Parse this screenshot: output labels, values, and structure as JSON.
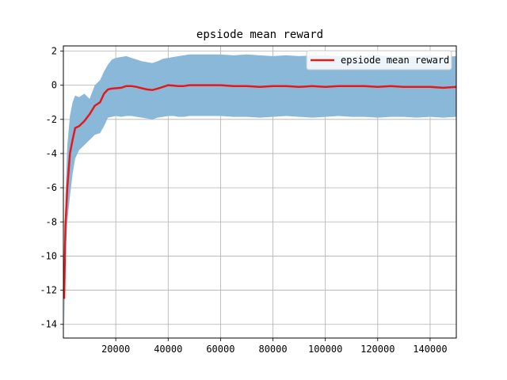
{
  "chart_data": {
    "type": "line",
    "title": "epsiode mean reward",
    "xlabel": "",
    "ylabel": "",
    "xlim": [
      0,
      150000
    ],
    "ylim": [
      -14.8,
      2.3
    ],
    "x_ticks": [
      20000,
      40000,
      60000,
      80000,
      100000,
      120000,
      140000
    ],
    "y_ticks": [
      2,
      0,
      -2,
      -4,
      -6,
      -8,
      -10,
      -12,
      -14
    ],
    "grid": true,
    "legend": {
      "placement": "top-right",
      "entries": [
        "epsiode mean reward"
      ]
    },
    "series": [
      {
        "name": "epsiode mean reward",
        "color": "#e31a1c",
        "x": [
          300,
          800,
          1500,
          2500,
          3500,
          4500,
          6000,
          8000,
          10000,
          12000,
          14000,
          15500,
          17000,
          18500,
          20000,
          22000,
          24000,
          26000,
          28000,
          30000,
          32000,
          34000,
          36000,
          38000,
          40000,
          42000,
          44000,
          46000,
          48000,
          50000,
          55000,
          60000,
          65000,
          70000,
          75000,
          80000,
          85000,
          90000,
          95000,
          100000,
          105000,
          110000,
          115000,
          120000,
          125000,
          130000,
          135000,
          140000,
          145000,
          150000
        ],
        "y": [
          -12.5,
          -8.2,
          -6.0,
          -4.0,
          -3.2,
          -2.5,
          -2.4,
          -2.1,
          -1.7,
          -1.2,
          -1.0,
          -0.5,
          -0.25,
          -0.2,
          -0.18,
          -0.15,
          -0.05,
          -0.05,
          -0.1,
          -0.18,
          -0.25,
          -0.28,
          -0.2,
          -0.1,
          0.0,
          -0.02,
          -0.05,
          -0.05,
          0.0,
          0.0,
          0.0,
          0.0,
          -0.05,
          -0.05,
          -0.1,
          -0.05,
          -0.05,
          -0.1,
          -0.05,
          -0.1,
          -0.05,
          -0.05,
          -0.05,
          -0.1,
          -0.05,
          -0.1,
          -0.1,
          -0.1,
          -0.15,
          -0.1
        ]
      }
    ],
    "band": {
      "color": "#8ab8d9",
      "x": [
        300,
        800,
        1500,
        2500,
        3500,
        4500,
        6000,
        8000,
        10000,
        12000,
        14000,
        15500,
        17000,
        18500,
        20000,
        22000,
        24000,
        26000,
        28000,
        30000,
        32000,
        34000,
        36000,
        38000,
        40000,
        42000,
        44000,
        46000,
        48000,
        50000,
        55000,
        60000,
        65000,
        70000,
        75000,
        80000,
        85000,
        90000,
        95000,
        100000,
        105000,
        110000,
        115000,
        120000,
        125000,
        130000,
        135000,
        140000,
        145000,
        150000
      ],
      "upper": [
        -11.5,
        -6.5,
        -3.5,
        -1.8,
        -1.0,
        -0.6,
        -0.7,
        -0.5,
        -0.8,
        0.0,
        0.3,
        0.8,
        1.2,
        1.5,
        1.6,
        1.65,
        1.7,
        1.6,
        1.5,
        1.4,
        1.35,
        1.3,
        1.4,
        1.55,
        1.6,
        1.65,
        1.7,
        1.75,
        1.8,
        1.8,
        1.8,
        1.8,
        1.75,
        1.8,
        1.75,
        1.7,
        1.75,
        1.7,
        1.75,
        1.75,
        1.7,
        1.7,
        1.7,
        1.75,
        1.7,
        1.7,
        1.7,
        1.75,
        1.65,
        1.7
      ],
      "lower": [
        -14.2,
        -10.0,
        -8.0,
        -6.5,
        -5.2,
        -4.3,
        -3.8,
        -3.5,
        -3.2,
        -2.9,
        -2.8,
        -2.4,
        -1.9,
        -1.85,
        -1.8,
        -1.85,
        -1.8,
        -1.8,
        -1.85,
        -1.9,
        -1.95,
        -2.0,
        -1.9,
        -1.85,
        -1.8,
        -1.8,
        -1.85,
        -1.85,
        -1.8,
        -1.8,
        -1.8,
        -1.8,
        -1.85,
        -1.85,
        -1.9,
        -1.85,
        -1.8,
        -1.85,
        -1.9,
        -1.85,
        -1.8,
        -1.85,
        -1.85,
        -1.9,
        -1.85,
        -1.85,
        -1.9,
        -1.85,
        -1.9,
        -1.85
      ]
    }
  }
}
